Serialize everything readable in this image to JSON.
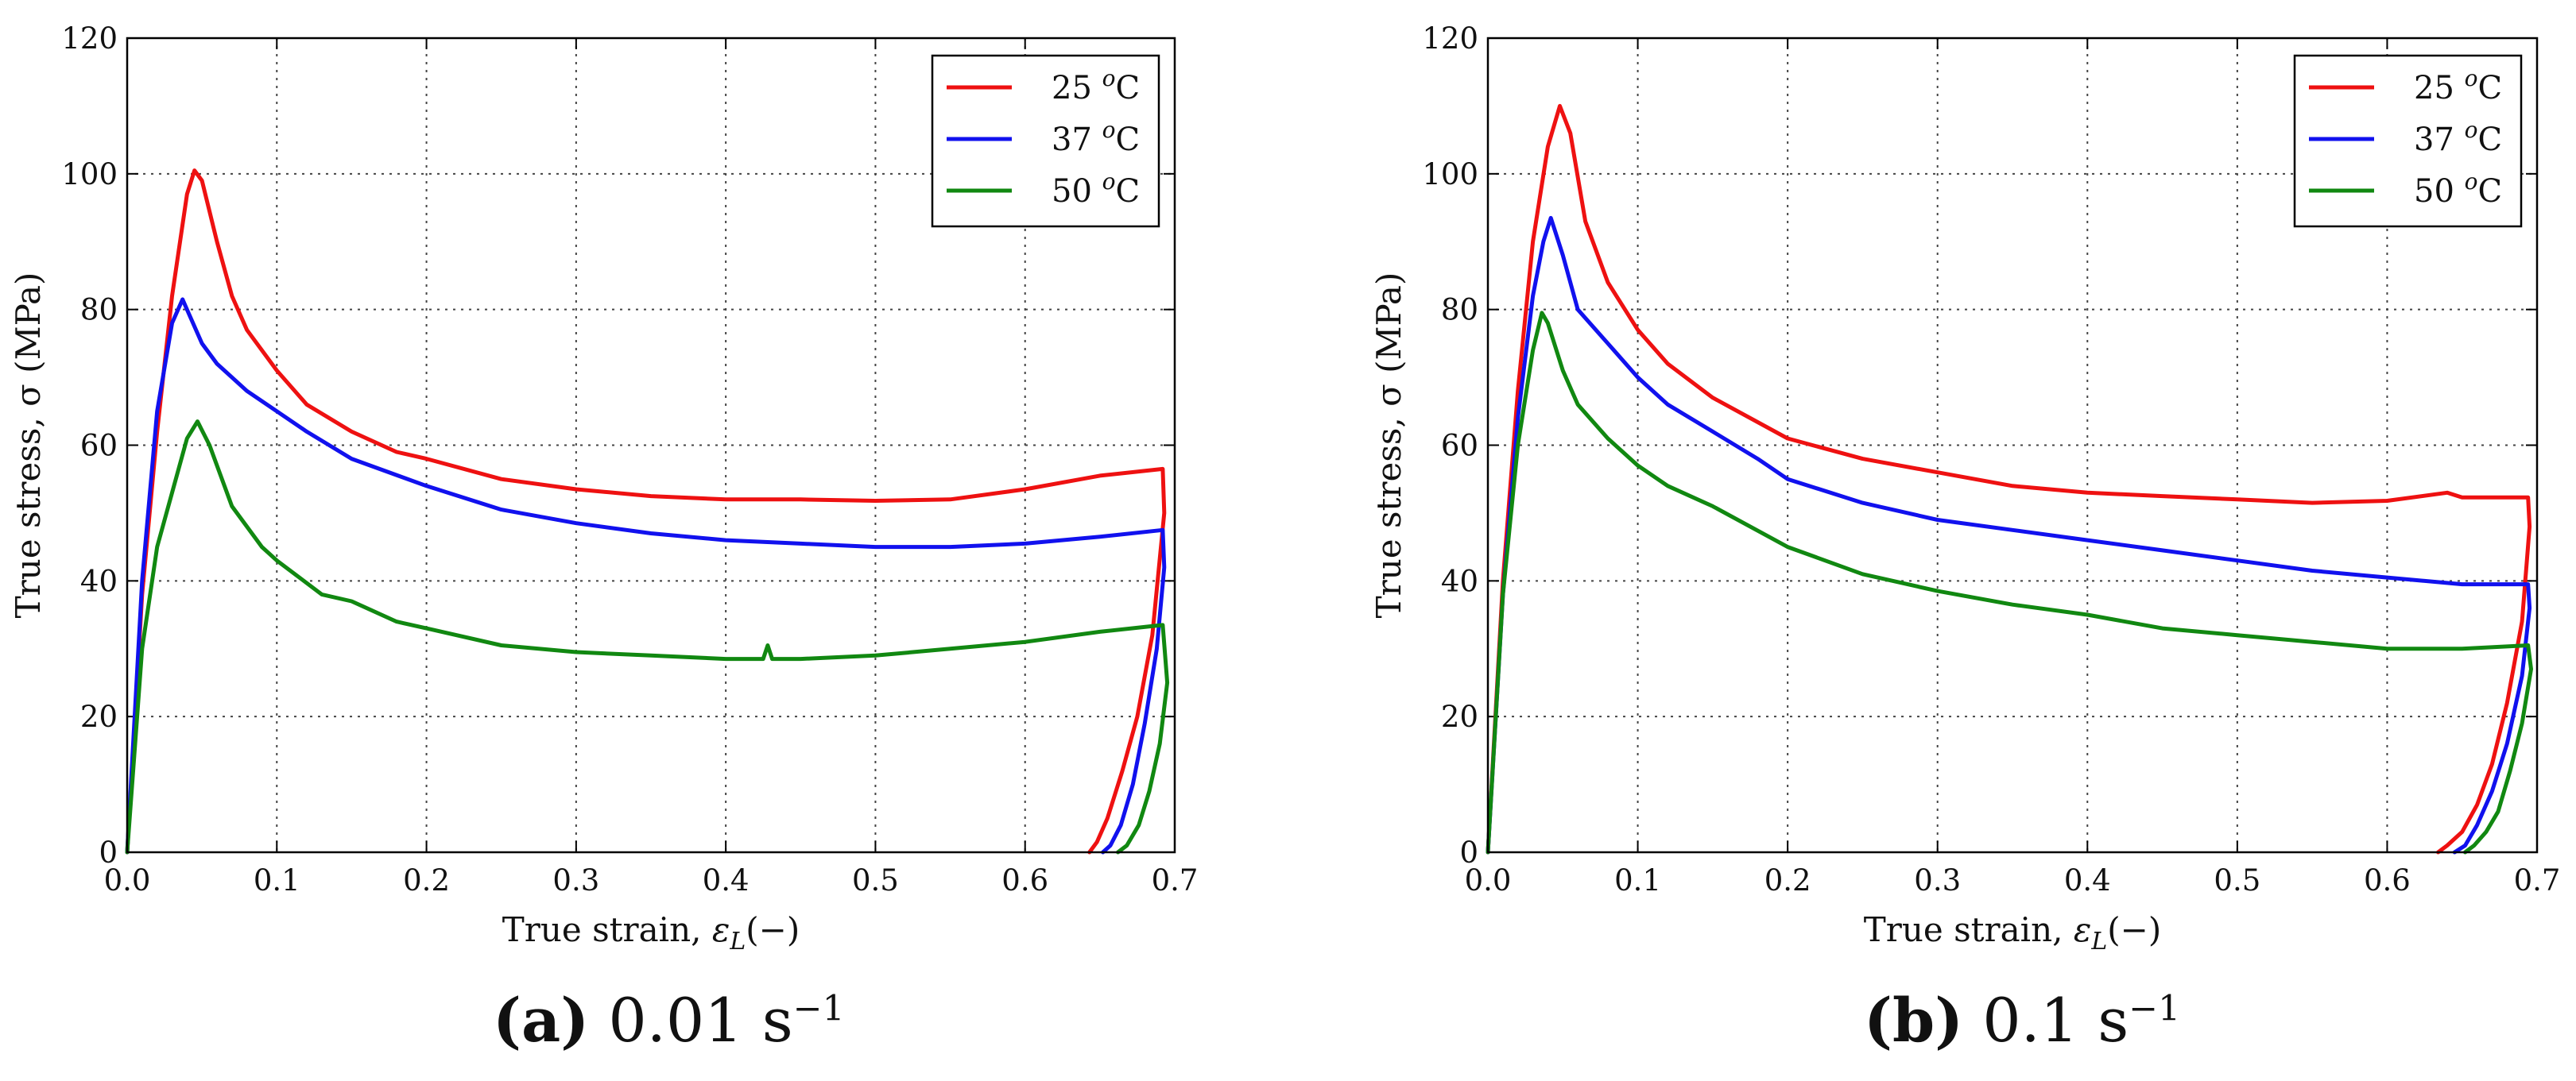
{
  "chart_data": [
    {
      "type": "line",
      "panel": "a",
      "xlabel": "True strain, ε_L(−)",
      "ylabel": "True stress, σ (MPa)",
      "xlim": [
        0,
        0.7
      ],
      "ylim": [
        0,
        120
      ],
      "xticks": [
        0.0,
        0.1,
        0.2,
        0.3,
        0.4,
        0.5,
        0.6,
        0.7
      ],
      "xtick_labels": [
        "0.0",
        "0.1",
        "0.2",
        "0.3",
        "0.4",
        "0.5",
        "0.6",
        "0.7"
      ],
      "yticks": [
        0,
        20,
        40,
        60,
        80,
        100,
        120
      ],
      "ytick_labels": [
        "0",
        "20",
        "40",
        "60",
        "80",
        "100",
        "120"
      ],
      "grid": true,
      "legend_position": "top-right",
      "caption": {
        "letter": "(a)",
        "rate": "0.01 s",
        "exponent": "−1"
      },
      "series": [
        {
          "name": "25 °C",
          "label_num": "25",
          "label_sup": "o",
          "label_unit": "C",
          "color": "#ee1111",
          "x": [
            0,
            0.01,
            0.02,
            0.03,
            0.04,
            0.045,
            0.05,
            0.06,
            0.07,
            0.08,
            0.1,
            0.12,
            0.15,
            0.18,
            0.2,
            0.25,
            0.3,
            0.35,
            0.4,
            0.45,
            0.5,
            0.55,
            0.6,
            0.65,
            0.692,
            0.693,
            0.685,
            0.675,
            0.665,
            0.655,
            0.648,
            0.643
          ],
          "y": [
            0,
            38,
            62,
            82,
            97,
            100.5,
            99,
            90,
            82,
            77,
            71,
            66,
            62,
            59,
            58,
            55,
            53.5,
            52.5,
            52,
            52,
            51.8,
            52,
            53.5,
            55.5,
            56.5,
            50,
            32,
            20,
            12,
            5,
            1.5,
            0
          ]
        },
        {
          "name": "37 °C",
          "label_num": "37",
          "label_sup": "o",
          "label_unit": "C",
          "color": "#1111ee",
          "x": [
            0,
            0.01,
            0.02,
            0.03,
            0.037,
            0.04,
            0.05,
            0.06,
            0.08,
            0.1,
            0.12,
            0.15,
            0.2,
            0.25,
            0.3,
            0.35,
            0.4,
            0.45,
            0.5,
            0.55,
            0.6,
            0.65,
            0.692,
            0.693,
            0.688,
            0.68,
            0.672,
            0.664,
            0.657,
            0.652
          ],
          "y": [
            0,
            40,
            65,
            78,
            81.5,
            80,
            75,
            72,
            68,
            65,
            62,
            58,
            54,
            50.5,
            48.5,
            47,
            46,
            45.5,
            45,
            45,
            45.5,
            46.5,
            47.5,
            42,
            30,
            19,
            10,
            4,
            1,
            0
          ]
        },
        {
          "name": "50 °C",
          "label_num": "50",
          "label_sup": "o",
          "label_unit": "C",
          "color": "#118811",
          "x": [
            0,
            0.01,
            0.02,
            0.03,
            0.04,
            0.047,
            0.055,
            0.07,
            0.09,
            0.1,
            0.13,
            0.15,
            0.18,
            0.2,
            0.25,
            0.3,
            0.35,
            0.4,
            0.425,
            0.428,
            0.431,
            0.45,
            0.5,
            0.55,
            0.6,
            0.65,
            0.692,
            0.695,
            0.69,
            0.683,
            0.676,
            0.668,
            0.662
          ],
          "y": [
            0,
            30,
            45,
            53,
            61,
            63.5,
            60,
            51,
            45,
            43,
            38,
            37,
            34,
            33,
            30.5,
            29.5,
            29,
            28.5,
            28.5,
            30.5,
            28.5,
            28.5,
            29,
            30,
            31,
            32.5,
            33.5,
            25,
            16,
            9,
            4,
            1,
            0
          ]
        }
      ]
    },
    {
      "type": "line",
      "panel": "b",
      "xlabel": "True strain, ε_L(−)",
      "ylabel": "True stress, σ (MPa)",
      "xlim": [
        0,
        0.7
      ],
      "ylim": [
        0,
        120
      ],
      "xticks": [
        0.0,
        0.1,
        0.2,
        0.3,
        0.4,
        0.5,
        0.6,
        0.7
      ],
      "xtick_labels": [
        "0.0",
        "0.1",
        "0.2",
        "0.3",
        "0.4",
        "0.5",
        "0.6",
        "0.7"
      ],
      "yticks": [
        0,
        20,
        40,
        60,
        80,
        100,
        120
      ],
      "ytick_labels": [
        "0",
        "20",
        "40",
        "60",
        "80",
        "100",
        "120"
      ],
      "grid": true,
      "legend_position": "top-right",
      "caption": {
        "letter": "(b)",
        "rate": "0.1 s",
        "exponent": "−1"
      },
      "series": [
        {
          "name": "25 °C",
          "label_num": "25",
          "label_sup": "o",
          "label_unit": "C",
          "color": "#ee1111",
          "x": [
            0,
            0.01,
            0.02,
            0.03,
            0.04,
            0.048,
            0.055,
            0.065,
            0.08,
            0.1,
            0.12,
            0.15,
            0.2,
            0.25,
            0.3,
            0.35,
            0.4,
            0.45,
            0.5,
            0.55,
            0.6,
            0.64,
            0.65,
            0.694,
            0.695,
            0.69,
            0.68,
            0.67,
            0.66,
            0.65,
            0.64,
            0.634
          ],
          "y": [
            0,
            40,
            68,
            90,
            104,
            110,
            106,
            93,
            84,
            77,
            72,
            67,
            61,
            58,
            56,
            54,
            53,
            52.5,
            52,
            51.5,
            51.8,
            53,
            52.3,
            52.3,
            48,
            34,
            22,
            13,
            7,
            3,
            1,
            0
          ]
        },
        {
          "name": "37 °C",
          "label_num": "37",
          "label_sup": "o",
          "label_unit": "C",
          "color": "#1111ee",
          "x": [
            0,
            0.01,
            0.02,
            0.03,
            0.037,
            0.042,
            0.05,
            0.06,
            0.08,
            0.1,
            0.12,
            0.15,
            0.18,
            0.2,
            0.25,
            0.3,
            0.35,
            0.4,
            0.45,
            0.5,
            0.55,
            0.6,
            0.65,
            0.694,
            0.695,
            0.69,
            0.68,
            0.67,
            0.66,
            0.652,
            0.645
          ],
          "y": [
            0,
            38,
            64,
            82,
            90,
            93.5,
            88,
            80,
            75,
            70,
            66,
            62,
            58,
            55,
            51.5,
            49,
            47.5,
            46,
            44.5,
            43,
            41.5,
            40.5,
            39.5,
            39.5,
            36,
            26,
            16,
            9,
            4,
            1,
            0
          ]
        },
        {
          "name": "50 °C",
          "label_num": "50",
          "label_sup": "o",
          "label_unit": "C",
          "color": "#118811",
          "x": [
            0,
            0.01,
            0.02,
            0.03,
            0.036,
            0.04,
            0.05,
            0.06,
            0.08,
            0.1,
            0.12,
            0.15,
            0.2,
            0.25,
            0.3,
            0.35,
            0.4,
            0.45,
            0.5,
            0.55,
            0.6,
            0.65,
            0.694,
            0.696,
            0.69,
            0.682,
            0.674,
            0.666,
            0.658,
            0.652
          ],
          "y": [
            0,
            38,
            60,
            74,
            79.5,
            78,
            71,
            66,
            61,
            57,
            54,
            51,
            45,
            41,
            38.5,
            36.5,
            35,
            33,
            32,
            31,
            30,
            30,
            30.5,
            27,
            19,
            12,
            6,
            3,
            1,
            0
          ]
        }
      ]
    }
  ]
}
